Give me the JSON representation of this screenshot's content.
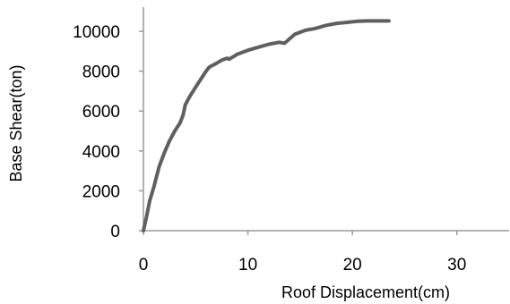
{
  "chart_data": {
    "type": "line",
    "xlabel": "Roof Displacement(cm)",
    "ylabel": "Base Shear(ton)",
    "xlim": [
      0,
      35
    ],
    "ylim": [
      0,
      10000
    ],
    "xticks": [
      0,
      10,
      20,
      30
    ],
    "yticks": [
      0,
      2000,
      4000,
      6000,
      8000,
      10000
    ],
    "grid": false,
    "series": [
      {
        "color": "#5f5f5f",
        "x": [
          0,
          0.3,
          0.6,
          1.0,
          1.5,
          2.0,
          2.5,
          3.0,
          3.5,
          3.8,
          4.0,
          4.4,
          5.0,
          5.5,
          6.0,
          6.3,
          7.0,
          7.5,
          8.0,
          8.2,
          9.0,
          10.0,
          11.0,
          12.0,
          13.0,
          13.5,
          14.5,
          15.5,
          16.5,
          17.5,
          18.5,
          19.5,
          20.5,
          21.5,
          22.5,
          23.5
        ],
        "y": [
          0,
          700,
          1500,
          2200,
          3200,
          3900,
          4500,
          5000,
          5400,
          5800,
          6300,
          6700,
          7200,
          7600,
          8000,
          8200,
          8400,
          8550,
          8650,
          8600,
          8850,
          9050,
          9200,
          9350,
          9450,
          9400,
          9850,
          10050,
          10150,
          10300,
          10400,
          10450,
          10500,
          10520,
          10520,
          10520
        ]
      }
    ]
  }
}
